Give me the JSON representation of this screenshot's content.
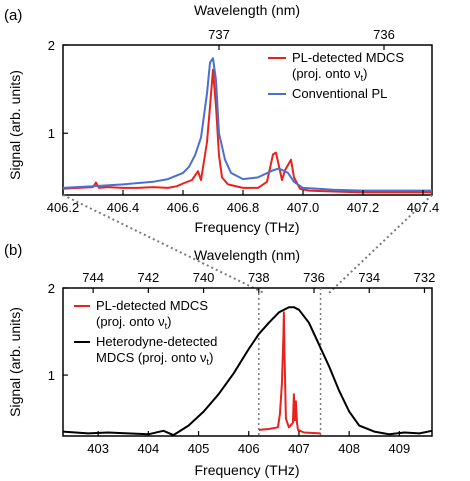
{
  "chart_data": [
    {
      "panel_label": "(a)",
      "type": "line",
      "xlabel": "Frequency (THz)",
      "ylabel": "Signal (arb. units)",
      "top_axis_label": "Wavelength (nm)",
      "xlim": [
        406.2,
        407.43
      ],
      "ylim": [
        0.3,
        2.0
      ],
      "xticks": [
        "406.2",
        "406.4",
        "406.6",
        "406.8",
        "407.0",
        "407.2",
        "407.4"
      ],
      "yticks": [
        "1",
        "2"
      ],
      "top_ticks": [
        "737",
        "736"
      ],
      "top_tick_positions_thz": [
        406.72,
        407.27
      ],
      "legend_placement": "top-right",
      "legend": [
        {
          "lines": [
            "PL-detected MDCS",
            "(proj. onto ν",
            "t",
            ")"
          ],
          "color": "#e8231f"
        },
        {
          "lines": [
            "Conventional PL"
          ],
          "color": "#4a6fd0"
        }
      ],
      "series": [
        {
          "name": "PL-detected MDCS (proj. onto νt)",
          "color": "#e8231f",
          "x": [
            406.2,
            406.25,
            406.3,
            406.31,
            406.32,
            406.35,
            406.4,
            406.45,
            406.5,
            406.55,
            406.58,
            406.6,
            406.63,
            406.65,
            406.66,
            406.68,
            406.69,
            406.7,
            406.71,
            406.72,
            406.73,
            406.75,
            406.8,
            406.85,
            406.88,
            406.9,
            406.91,
            406.93,
            406.94,
            406.96,
            406.97,
            406.99,
            407.02,
            407.1,
            407.2,
            407.3,
            407.43
          ],
          "y": [
            0.37,
            0.38,
            0.39,
            0.44,
            0.38,
            0.39,
            0.38,
            0.38,
            0.39,
            0.38,
            0.4,
            0.43,
            0.47,
            0.57,
            0.47,
            0.9,
            1.3,
            1.72,
            1.3,
            0.75,
            0.5,
            0.42,
            0.38,
            0.38,
            0.45,
            0.76,
            0.78,
            0.47,
            0.58,
            0.7,
            0.5,
            0.37,
            0.35,
            0.34,
            0.33,
            0.33,
            0.33
          ]
        },
        {
          "name": "Conventional PL",
          "color": "#4a6fd0",
          "x": [
            406.2,
            406.3,
            406.4,
            406.5,
            406.55,
            406.6,
            406.62,
            406.64,
            406.66,
            406.68,
            406.69,
            406.7,
            406.71,
            406.72,
            406.74,
            406.76,
            406.8,
            406.85,
            406.9,
            406.92,
            406.95,
            406.97,
            407.0,
            407.05,
            407.1,
            407.2,
            407.3,
            407.43
          ],
          "y": [
            0.38,
            0.4,
            0.42,
            0.45,
            0.48,
            0.55,
            0.62,
            0.75,
            0.95,
            1.45,
            1.8,
            1.85,
            1.6,
            1.0,
            0.7,
            0.55,
            0.48,
            0.5,
            0.58,
            0.6,
            0.55,
            0.45,
            0.38,
            0.37,
            0.36,
            0.35,
            0.35,
            0.35
          ]
        }
      ]
    },
    {
      "panel_label": "(b)",
      "type": "line",
      "xlabel": "Frequency (THz)",
      "ylabel": "Signal (arb. units)",
      "top_axis_label": "Wavelength (nm)",
      "xlim": [
        402.3,
        409.65
      ],
      "ylim": [
        0.3,
        2.0
      ],
      "xticks": [
        "403",
        "404",
        "405",
        "406",
        "407",
        "408",
        "409"
      ],
      "yticks": [
        "1",
        "2"
      ],
      "top_ticks": [
        "744",
        "742",
        "740",
        "738",
        "736",
        "734",
        "732"
      ],
      "top_tick_positions_thz": [
        402.9,
        404.0,
        405.1,
        406.2,
        407.3,
        408.4,
        409.5
      ],
      "legend_placement": "left",
      "legend": [
        {
          "lines": [
            "PL-detected MDCS",
            "(proj. onto ν",
            "t",
            ")"
          ],
          "color": "#e8231f"
        },
        {
          "lines": [
            "Heterodyne-detected",
            "MDCS (proj. onto ν",
            "t",
            ")"
          ],
          "color": "#000000"
        }
      ],
      "series": [
        {
          "name": "Heterodyne-detected MDCS (proj. onto νt)",
          "color": "#000000",
          "x": [
            402.3,
            402.8,
            403.2,
            403.6,
            404.0,
            404.3,
            404.5,
            404.8,
            405.1,
            405.4,
            405.7,
            406.0,
            406.2,
            406.4,
            406.6,
            406.8,
            406.9,
            407.0,
            407.2,
            407.4,
            407.6,
            407.8,
            408.0,
            408.2,
            408.5,
            408.8,
            409.1,
            409.4,
            409.65
          ],
          "y": [
            0.35,
            0.33,
            0.34,
            0.33,
            0.32,
            0.36,
            0.31,
            0.42,
            0.58,
            0.78,
            1.02,
            1.3,
            1.47,
            1.6,
            1.72,
            1.78,
            1.78,
            1.75,
            1.6,
            1.35,
            1.1,
            0.82,
            0.58,
            0.42,
            0.35,
            0.32,
            0.34,
            0.33,
            0.36
          ]
        },
        {
          "name": "PL-detected MDCS (proj. onto νt)",
          "color": "#e8231f",
          "x": [
            406.2,
            406.4,
            406.58,
            406.62,
            406.66,
            406.69,
            406.7,
            406.71,
            406.74,
            406.8,
            406.88,
            406.9,
            406.92,
            406.94,
            406.96,
            406.98,
            407.1,
            407.43
          ],
          "y": [
            0.37,
            0.38,
            0.4,
            0.55,
            0.9,
            1.45,
            1.72,
            1.3,
            0.5,
            0.4,
            0.45,
            0.78,
            0.48,
            0.7,
            0.45,
            0.37,
            0.34,
            0.33
          ]
        }
      ]
    }
  ]
}
